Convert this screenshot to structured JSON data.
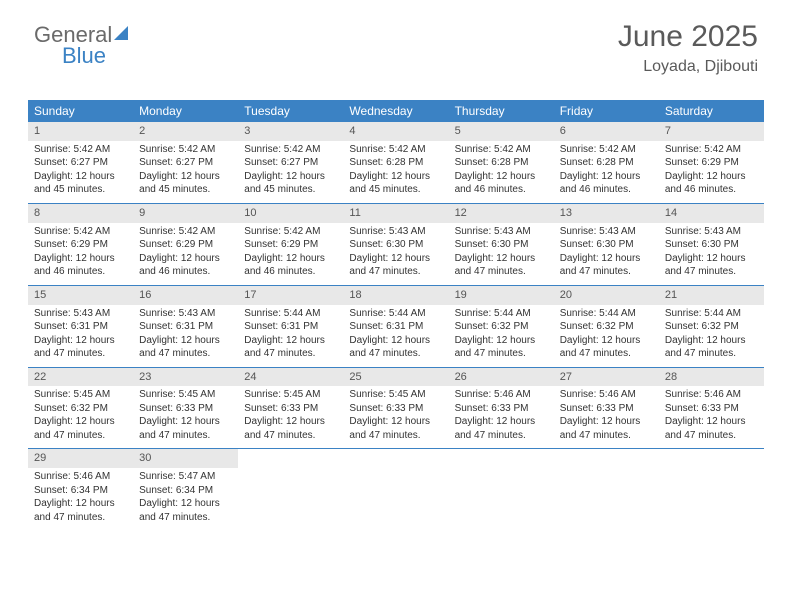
{
  "logo": {
    "line1": "General",
    "line2": "Blue"
  },
  "title": "June 2025",
  "location": "Loyada, Djibouti",
  "header_bg": "#3b82c4",
  "daynum_bg": "#e8e8e8",
  "weekdays": [
    "Sunday",
    "Monday",
    "Tuesday",
    "Wednesday",
    "Thursday",
    "Friday",
    "Saturday"
  ],
  "weeks": [
    [
      {
        "n": "1",
        "sr": "5:42 AM",
        "ss": "6:27 PM",
        "dl": "12 hours and 45 minutes."
      },
      {
        "n": "2",
        "sr": "5:42 AM",
        "ss": "6:27 PM",
        "dl": "12 hours and 45 minutes."
      },
      {
        "n": "3",
        "sr": "5:42 AM",
        "ss": "6:27 PM",
        "dl": "12 hours and 45 minutes."
      },
      {
        "n": "4",
        "sr": "5:42 AM",
        "ss": "6:28 PM",
        "dl": "12 hours and 45 minutes."
      },
      {
        "n": "5",
        "sr": "5:42 AM",
        "ss": "6:28 PM",
        "dl": "12 hours and 46 minutes."
      },
      {
        "n": "6",
        "sr": "5:42 AM",
        "ss": "6:28 PM",
        "dl": "12 hours and 46 minutes."
      },
      {
        "n": "7",
        "sr": "5:42 AM",
        "ss": "6:29 PM",
        "dl": "12 hours and 46 minutes."
      }
    ],
    [
      {
        "n": "8",
        "sr": "5:42 AM",
        "ss": "6:29 PM",
        "dl": "12 hours and 46 minutes."
      },
      {
        "n": "9",
        "sr": "5:42 AM",
        "ss": "6:29 PM",
        "dl": "12 hours and 46 minutes."
      },
      {
        "n": "10",
        "sr": "5:42 AM",
        "ss": "6:29 PM",
        "dl": "12 hours and 46 minutes."
      },
      {
        "n": "11",
        "sr": "5:43 AM",
        "ss": "6:30 PM",
        "dl": "12 hours and 47 minutes."
      },
      {
        "n": "12",
        "sr": "5:43 AM",
        "ss": "6:30 PM",
        "dl": "12 hours and 47 minutes."
      },
      {
        "n": "13",
        "sr": "5:43 AM",
        "ss": "6:30 PM",
        "dl": "12 hours and 47 minutes."
      },
      {
        "n": "14",
        "sr": "5:43 AM",
        "ss": "6:30 PM",
        "dl": "12 hours and 47 minutes."
      }
    ],
    [
      {
        "n": "15",
        "sr": "5:43 AM",
        "ss": "6:31 PM",
        "dl": "12 hours and 47 minutes."
      },
      {
        "n": "16",
        "sr": "5:43 AM",
        "ss": "6:31 PM",
        "dl": "12 hours and 47 minutes."
      },
      {
        "n": "17",
        "sr": "5:44 AM",
        "ss": "6:31 PM",
        "dl": "12 hours and 47 minutes."
      },
      {
        "n": "18",
        "sr": "5:44 AM",
        "ss": "6:31 PM",
        "dl": "12 hours and 47 minutes."
      },
      {
        "n": "19",
        "sr": "5:44 AM",
        "ss": "6:32 PM",
        "dl": "12 hours and 47 minutes."
      },
      {
        "n": "20",
        "sr": "5:44 AM",
        "ss": "6:32 PM",
        "dl": "12 hours and 47 minutes."
      },
      {
        "n": "21",
        "sr": "5:44 AM",
        "ss": "6:32 PM",
        "dl": "12 hours and 47 minutes."
      }
    ],
    [
      {
        "n": "22",
        "sr": "5:45 AM",
        "ss": "6:32 PM",
        "dl": "12 hours and 47 minutes."
      },
      {
        "n": "23",
        "sr": "5:45 AM",
        "ss": "6:33 PM",
        "dl": "12 hours and 47 minutes."
      },
      {
        "n": "24",
        "sr": "5:45 AM",
        "ss": "6:33 PM",
        "dl": "12 hours and 47 minutes."
      },
      {
        "n": "25",
        "sr": "5:45 AM",
        "ss": "6:33 PM",
        "dl": "12 hours and 47 minutes."
      },
      {
        "n": "26",
        "sr": "5:46 AM",
        "ss": "6:33 PM",
        "dl": "12 hours and 47 minutes."
      },
      {
        "n": "27",
        "sr": "5:46 AM",
        "ss": "6:33 PM",
        "dl": "12 hours and 47 minutes."
      },
      {
        "n": "28",
        "sr": "5:46 AM",
        "ss": "6:33 PM",
        "dl": "12 hours and 47 minutes."
      }
    ],
    [
      {
        "n": "29",
        "sr": "5:46 AM",
        "ss": "6:34 PM",
        "dl": "12 hours and 47 minutes."
      },
      {
        "n": "30",
        "sr": "5:47 AM",
        "ss": "6:34 PM",
        "dl": "12 hours and 47 minutes."
      },
      null,
      null,
      null,
      null,
      null
    ]
  ],
  "labels": {
    "sunrise": "Sunrise:",
    "sunset": "Sunset:",
    "daylight": "Daylight:"
  }
}
